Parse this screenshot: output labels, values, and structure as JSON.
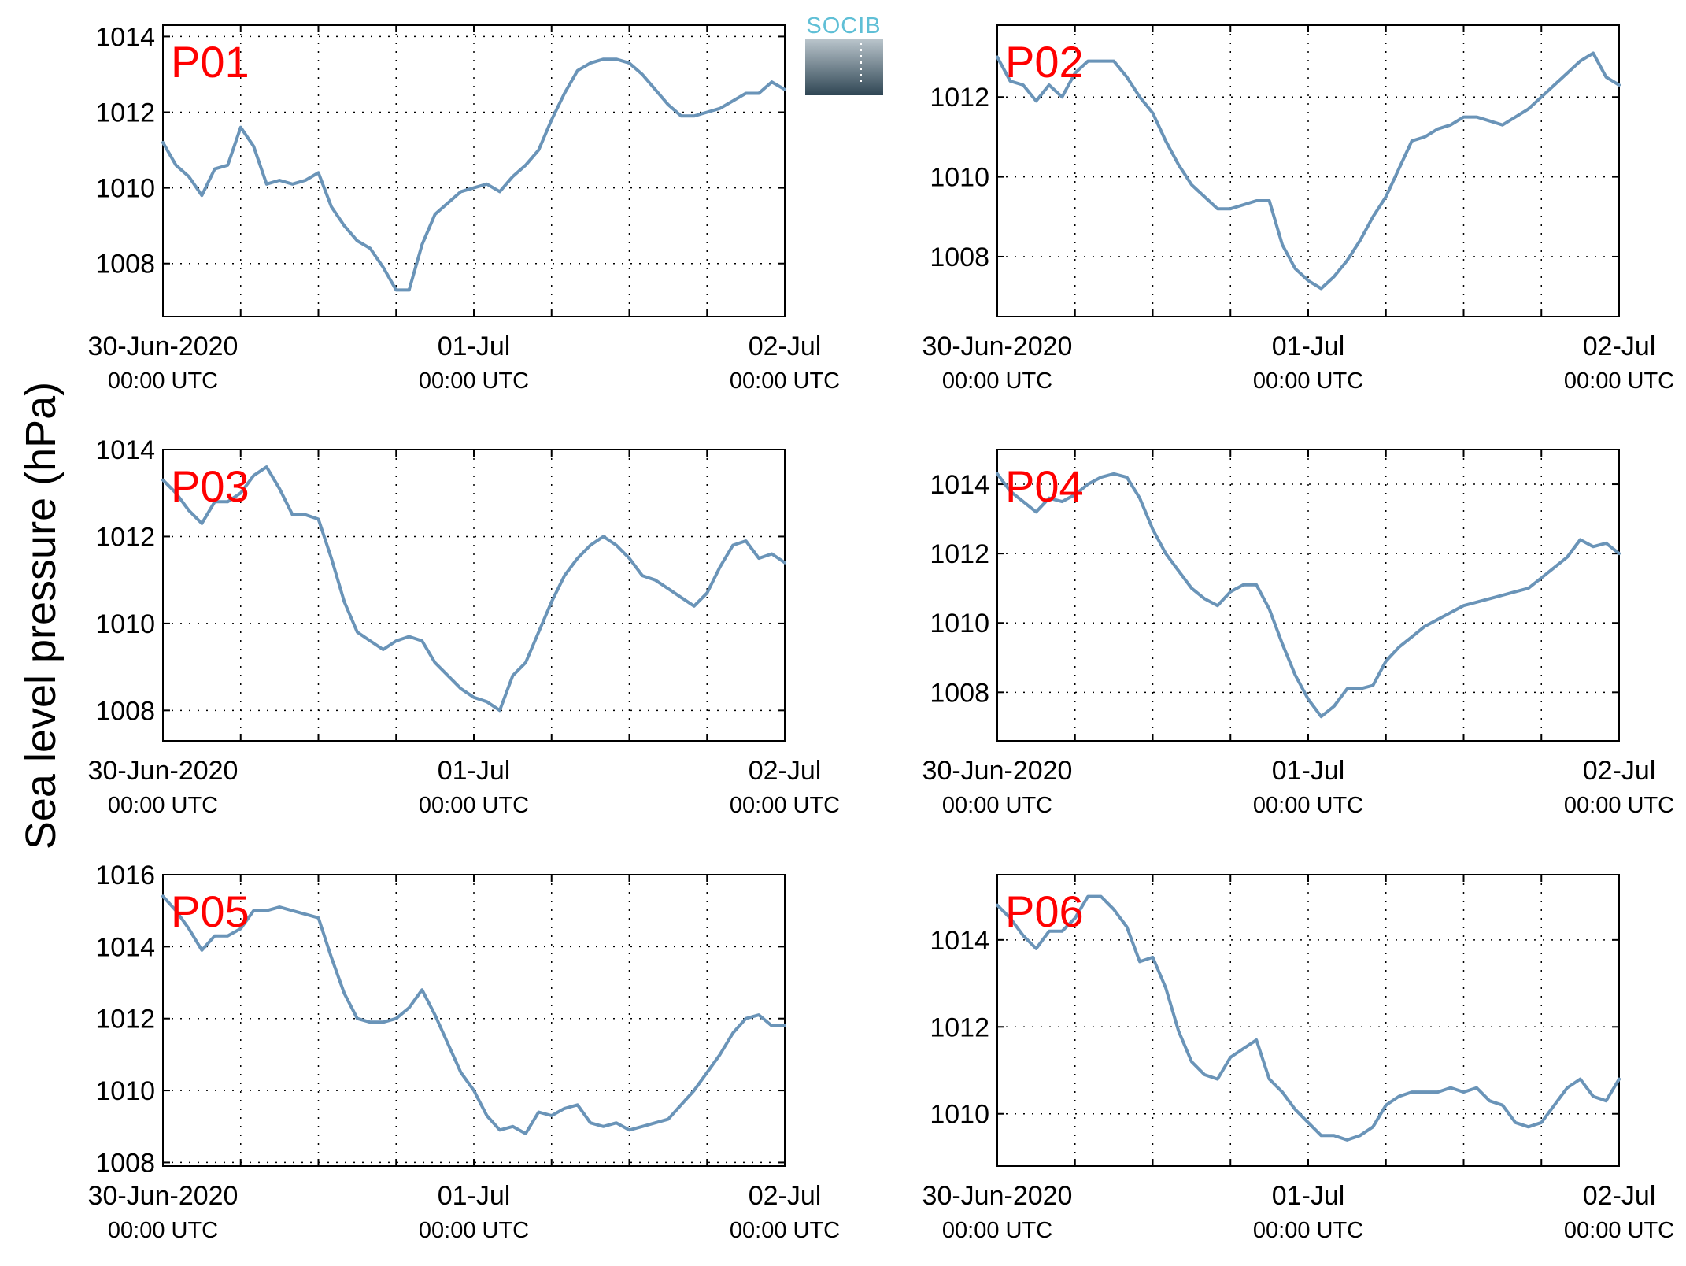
{
  "figure": {
    "ylabel": "Sea level pressure (hPa)",
    "logo_text": "SOCIB",
    "line_color": "#6a94b8",
    "tag_color": "#ff0000"
  },
  "chart_data": [
    {
      "type": "line",
      "panel": "P01",
      "xlim_hours": [
        0,
        48
      ],
      "x_ticks": [
        {
          "line1": "30-Jun-2020",
          "line2": "00:00 UTC"
        },
        {
          "line1": "01-Jul",
          "line2": "00:00 UTC"
        },
        {
          "line1": "02-Jul",
          "line2": "00:00 UTC"
        }
      ],
      "ylim": [
        1006.6,
        1014.3
      ],
      "yticks": [
        1008,
        1010,
        1012,
        1014
      ],
      "grid": true,
      "x_hours": [
        0,
        1,
        2,
        3,
        4,
        5,
        6,
        7,
        8,
        9,
        10,
        11,
        12,
        13,
        14,
        15,
        16,
        17,
        18,
        19,
        20,
        21,
        22,
        23,
        24,
        25,
        26,
        27,
        28,
        29,
        30,
        31,
        32,
        33,
        34,
        35,
        36,
        37,
        38,
        39,
        40,
        41,
        42,
        43,
        44,
        45,
        46,
        47,
        48
      ],
      "values": [
        1011.2,
        1010.6,
        1010.3,
        1009.8,
        1010.5,
        1010.6,
        1011.6,
        1011.1,
        1010.1,
        1010.2,
        1010.1,
        1010.2,
        1010.4,
        1009.5,
        1009.0,
        1008.6,
        1008.4,
        1007.9,
        1007.3,
        1007.3,
        1008.5,
        1009.3,
        1009.6,
        1009.9,
        1010.0,
        1010.1,
        1009.9,
        1010.3,
        1010.6,
        1011.0,
        1011.8,
        1012.5,
        1013.1,
        1013.3,
        1013.4,
        1013.4,
        1013.3,
        1013.0,
        1012.6,
        1012.2,
        1011.9,
        1011.9,
        1012.0,
        1012.1,
        1012.3,
        1012.5,
        1012.5,
        1012.8,
        1012.6
      ]
    },
    {
      "type": "line",
      "panel": "P02",
      "xlim_hours": [
        0,
        48
      ],
      "x_ticks": [
        {
          "line1": "30-Jun-2020",
          "line2": "00:00 UTC"
        },
        {
          "line1": "01-Jul",
          "line2": "00:00 UTC"
        },
        {
          "line1": "02-Jul",
          "line2": "00:00 UTC"
        }
      ],
      "ylim": [
        1006.5,
        1013.8
      ],
      "yticks": [
        1008,
        1010,
        1012
      ],
      "grid": true,
      "x_hours": [
        0,
        1,
        2,
        3,
        4,
        5,
        6,
        7,
        8,
        9,
        10,
        11,
        12,
        13,
        14,
        15,
        16,
        17,
        18,
        19,
        20,
        21,
        22,
        23,
        24,
        25,
        26,
        27,
        28,
        29,
        30,
        31,
        32,
        33,
        34,
        35,
        36,
        37,
        38,
        39,
        40,
        41,
        42,
        43,
        44,
        45,
        46,
        47,
        48
      ],
      "values": [
        1013.0,
        1012.4,
        1012.3,
        1011.9,
        1012.3,
        1012.0,
        1012.6,
        1012.9,
        1012.9,
        1012.9,
        1012.5,
        1012.0,
        1011.6,
        1010.9,
        1010.3,
        1009.8,
        1009.5,
        1009.2,
        1009.2,
        1009.3,
        1009.4,
        1009.4,
        1008.3,
        1007.7,
        1007.4,
        1007.2,
        1007.5,
        1007.9,
        1008.4,
        1009.0,
        1009.5,
        1010.2,
        1010.9,
        1011.0,
        1011.2,
        1011.3,
        1011.5,
        1011.5,
        1011.4,
        1011.3,
        1011.5,
        1011.7,
        1012.0,
        1012.3,
        1012.6,
        1012.9,
        1013.1,
        1012.5,
        1012.3
      ]
    },
    {
      "type": "line",
      "panel": "P03",
      "xlim_hours": [
        0,
        48
      ],
      "x_ticks": [
        {
          "line1": "30-Jun-2020",
          "line2": "00:00 UTC"
        },
        {
          "line1": "01-Jul",
          "line2": "00:00 UTC"
        },
        {
          "line1": "02-Jul",
          "line2": "00:00 UTC"
        }
      ],
      "ylim": [
        1007.3,
        1014.0
      ],
      "yticks": [
        1008,
        1010,
        1012,
        1014
      ],
      "grid": true,
      "x_hours": [
        0,
        1,
        2,
        3,
        4,
        5,
        6,
        7,
        8,
        9,
        10,
        11,
        12,
        13,
        14,
        15,
        16,
        17,
        18,
        19,
        20,
        21,
        22,
        23,
        24,
        25,
        26,
        27,
        28,
        29,
        30,
        31,
        32,
        33,
        34,
        35,
        36,
        37,
        38,
        39,
        40,
        41,
        42,
        43,
        44,
        45,
        46,
        47,
        48
      ],
      "values": [
        1013.3,
        1013.0,
        1012.6,
        1012.3,
        1012.8,
        1012.8,
        1013.0,
        1013.4,
        1013.6,
        1013.1,
        1012.5,
        1012.5,
        1012.4,
        1011.5,
        1010.5,
        1009.8,
        1009.6,
        1009.4,
        1009.6,
        1009.7,
        1009.6,
        1009.1,
        1008.8,
        1008.5,
        1008.3,
        1008.2,
        1008.0,
        1008.8,
        1009.1,
        1009.8,
        1010.5,
        1011.1,
        1011.5,
        1011.8,
        1012.0,
        1011.8,
        1011.5,
        1011.1,
        1011.0,
        1010.8,
        1010.6,
        1010.4,
        1010.7,
        1011.3,
        1011.8,
        1011.9,
        1011.5,
        1011.6,
        1011.4
      ]
    },
    {
      "type": "line",
      "panel": "P04",
      "xlim_hours": [
        0,
        48
      ],
      "x_ticks": [
        {
          "line1": "30-Jun-2020",
          "line2": "00:00 UTC"
        },
        {
          "line1": "01-Jul",
          "line2": "00:00 UTC"
        },
        {
          "line1": "02-Jul",
          "line2": "00:00 UTC"
        }
      ],
      "ylim": [
        1006.6,
        1015.0
      ],
      "yticks": [
        1008,
        1010,
        1012,
        1014
      ],
      "grid": true,
      "x_hours": [
        0,
        1,
        2,
        3,
        4,
        5,
        6,
        7,
        8,
        9,
        10,
        11,
        12,
        13,
        14,
        15,
        16,
        17,
        18,
        19,
        20,
        21,
        22,
        23,
        24,
        25,
        26,
        27,
        28,
        29,
        30,
        31,
        32,
        33,
        34,
        35,
        36,
        37,
        38,
        39,
        40,
        41,
        42,
        43,
        44,
        45,
        46,
        47,
        48
      ],
      "values": [
        1014.3,
        1013.8,
        1013.5,
        1013.2,
        1013.6,
        1013.5,
        1013.7,
        1014.0,
        1014.2,
        1014.3,
        1014.2,
        1013.6,
        1012.7,
        1012.0,
        1011.5,
        1011.0,
        1010.7,
        1010.5,
        1010.9,
        1011.1,
        1011.1,
        1010.4,
        1009.4,
        1008.5,
        1007.8,
        1007.3,
        1007.6,
        1008.1,
        1008.1,
        1008.2,
        1008.9,
        1009.3,
        1009.6,
        1009.9,
        1010.1,
        1010.3,
        1010.5,
        1010.6,
        1010.7,
        1010.8,
        1010.9,
        1011.0,
        1011.3,
        1011.6,
        1011.9,
        1012.4,
        1012.2,
        1012.3,
        1012.0
      ]
    },
    {
      "type": "line",
      "panel": "P05",
      "xlim_hours": [
        0,
        48
      ],
      "x_ticks": [
        {
          "line1": "30-Jun-2020",
          "line2": "00:00 UTC"
        },
        {
          "line1": "01-Jul",
          "line2": "00:00 UTC"
        },
        {
          "line1": "02-Jul",
          "line2": "00:00 UTC"
        }
      ],
      "ylim": [
        1007.9,
        1016.0
      ],
      "yticks": [
        1008,
        1010,
        1012,
        1014,
        1016
      ],
      "grid": true,
      "x_hours": [
        0,
        1,
        2,
        3,
        4,
        5,
        6,
        7,
        8,
        9,
        10,
        11,
        12,
        13,
        14,
        15,
        16,
        17,
        18,
        19,
        20,
        21,
        22,
        23,
        24,
        25,
        26,
        27,
        28,
        29,
        30,
        31,
        32,
        33,
        34,
        35,
        36,
        37,
        38,
        39,
        40,
        41,
        42,
        43,
        44,
        45,
        46,
        47,
        48
      ],
      "values": [
        1015.4,
        1015.0,
        1014.5,
        1013.9,
        1014.3,
        1014.3,
        1014.5,
        1015.0,
        1015.0,
        1015.1,
        1015.0,
        1014.9,
        1014.8,
        1013.7,
        1012.7,
        1012.0,
        1011.9,
        1011.9,
        1012.0,
        1012.3,
        1012.8,
        1012.1,
        1011.3,
        1010.5,
        1010.0,
        1009.3,
        1008.9,
        1009.0,
        1008.8,
        1009.4,
        1009.3,
        1009.5,
        1009.6,
        1009.1,
        1009.0,
        1009.1,
        1008.9,
        1009.0,
        1009.1,
        1009.2,
        1009.6,
        1010.0,
        1010.5,
        1011.0,
        1011.6,
        1012.0,
        1012.1,
        1011.8,
        1011.8
      ]
    },
    {
      "type": "line",
      "panel": "P06",
      "xlim_hours": [
        0,
        48
      ],
      "x_ticks": [
        {
          "line1": "30-Jun-2020",
          "line2": "00:00 UTC"
        },
        {
          "line1": "01-Jul",
          "line2": "00:00 UTC"
        },
        {
          "line1": "02-Jul",
          "line2": "00:00 UTC"
        }
      ],
      "ylim": [
        1008.8,
        1015.5
      ],
      "yticks": [
        1010,
        1012,
        1014
      ],
      "grid": true,
      "x_hours": [
        0,
        1,
        2,
        3,
        4,
        5,
        6,
        7,
        8,
        9,
        10,
        11,
        12,
        13,
        14,
        15,
        16,
        17,
        18,
        19,
        20,
        21,
        22,
        23,
        24,
        25,
        26,
        27,
        28,
        29,
        30,
        31,
        32,
        33,
        34,
        35,
        36,
        37,
        38,
        39,
        40,
        41,
        42,
        43,
        44,
        45,
        46,
        47,
        48
      ],
      "values": [
        1014.8,
        1014.5,
        1014.1,
        1013.8,
        1014.2,
        1014.2,
        1014.5,
        1015.0,
        1015.0,
        1014.7,
        1014.3,
        1013.5,
        1013.6,
        1012.9,
        1011.9,
        1011.2,
        1010.9,
        1010.8,
        1011.3,
        1011.5,
        1011.7,
        1010.8,
        1010.5,
        1010.1,
        1009.8,
        1009.5,
        1009.5,
        1009.4,
        1009.5,
        1009.7,
        1010.2,
        1010.4,
        1010.5,
        1010.5,
        1010.5,
        1010.6,
        1010.5,
        1010.6,
        1010.3,
        1010.2,
        1009.8,
        1009.7,
        1009.8,
        1010.2,
        1010.6,
        1010.8,
        1010.4,
        1010.3,
        1010.8
      ]
    }
  ]
}
